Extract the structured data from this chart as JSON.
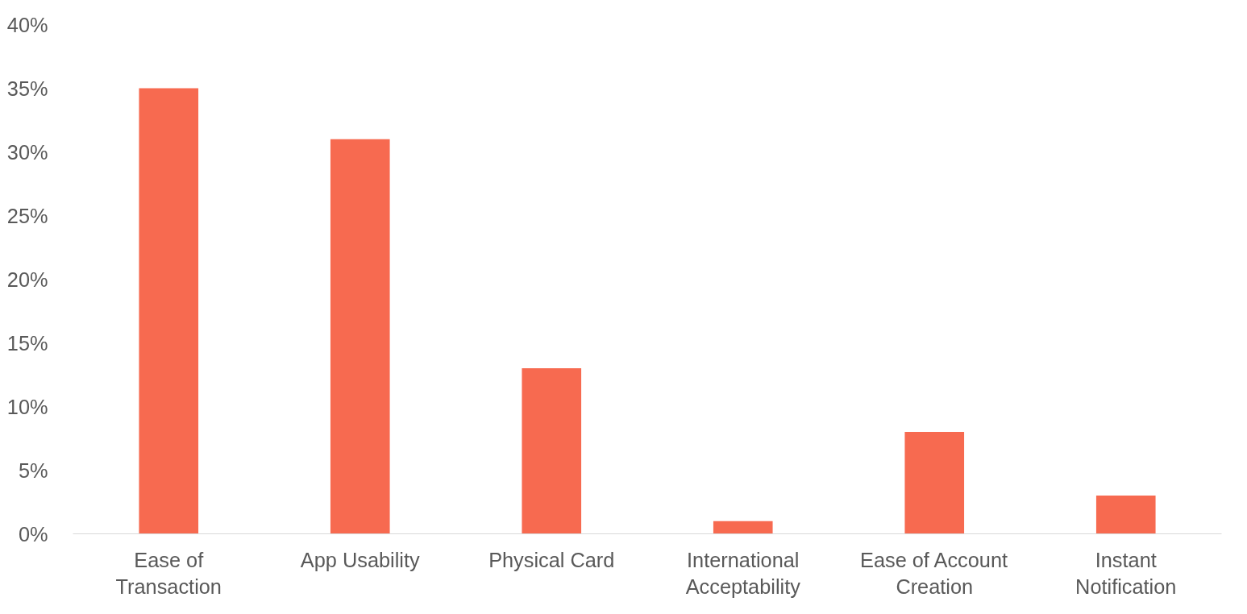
{
  "chart_data": {
    "type": "bar",
    "categories": [
      "Ease of Transaction",
      "App Usability",
      "Physical Card",
      "International Acceptability",
      "Ease of Account Creation",
      "Instant Notification"
    ],
    "values": [
      35,
      31,
      13,
      1,
      8,
      3
    ],
    "color": "#f76a50",
    "ylim": [
      0,
      40
    ],
    "yticks": [
      {
        "value": 0,
        "label": "0%"
      },
      {
        "value": 5,
        "label": "5%"
      },
      {
        "value": 10,
        "label": "10%"
      },
      {
        "value": 15,
        "label": "15%"
      },
      {
        "value": 20,
        "label": "20%"
      },
      {
        "value": 25,
        "label": "25%"
      },
      {
        "value": 30,
        "label": "30%"
      },
      {
        "value": 35,
        "label": "35%"
      },
      {
        "value": 40,
        "label": "40%"
      }
    ],
    "grid": false
  }
}
